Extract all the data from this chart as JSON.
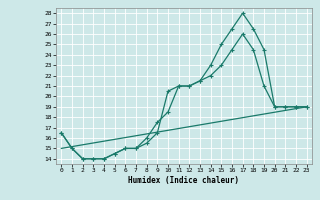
{
  "xlabel": "Humidex (Indice chaleur)",
  "bg_color": "#cde8e8",
  "grid_color": "#b8d8d8",
  "line_color": "#1a7a6a",
  "xlim": [
    -0.5,
    23.5
  ],
  "ylim": [
    13.5,
    28.5
  ],
  "xticks": [
    0,
    1,
    2,
    3,
    4,
    5,
    6,
    7,
    8,
    9,
    10,
    11,
    12,
    13,
    14,
    15,
    16,
    17,
    18,
    19,
    20,
    21,
    22,
    23
  ],
  "yticks": [
    14,
    15,
    16,
    17,
    18,
    19,
    20,
    21,
    22,
    23,
    24,
    25,
    26,
    27,
    28
  ],
  "line1_x": [
    0,
    1,
    2,
    3,
    4,
    5,
    6,
    7,
    8,
    9,
    10,
    11,
    12,
    13,
    14,
    15,
    16,
    17,
    18,
    19,
    20,
    21,
    22,
    23
  ],
  "line1_y": [
    16.5,
    15.0,
    14.0,
    14.0,
    14.0,
    14.5,
    15.0,
    15.0,
    16.0,
    17.5,
    18.5,
    21.0,
    21.0,
    21.5,
    23.0,
    25.0,
    26.5,
    28.0,
    26.5,
    24.5,
    19.0,
    19.0,
    19.0,
    19.0
  ],
  "line2_x": [
    0,
    1,
    2,
    3,
    4,
    5,
    6,
    7,
    8,
    9,
    10,
    11,
    12,
    13,
    14,
    15,
    16,
    17,
    18,
    19,
    20,
    21,
    22,
    23
  ],
  "line2_y": [
    16.5,
    15.0,
    14.0,
    14.0,
    14.0,
    14.5,
    15.0,
    15.0,
    15.5,
    16.5,
    20.5,
    21.0,
    21.0,
    21.5,
    22.0,
    23.0,
    24.5,
    26.0,
    24.5,
    21.0,
    19.0,
    19.0,
    19.0,
    19.0
  ],
  "line3_x": [
    0,
    23
  ],
  "line3_y": [
    15.0,
    19.0
  ],
  "marker_size": 2.5,
  "line_width": 0.9,
  "tick_fontsize": 4.5,
  "xlabel_fontsize": 5.5
}
